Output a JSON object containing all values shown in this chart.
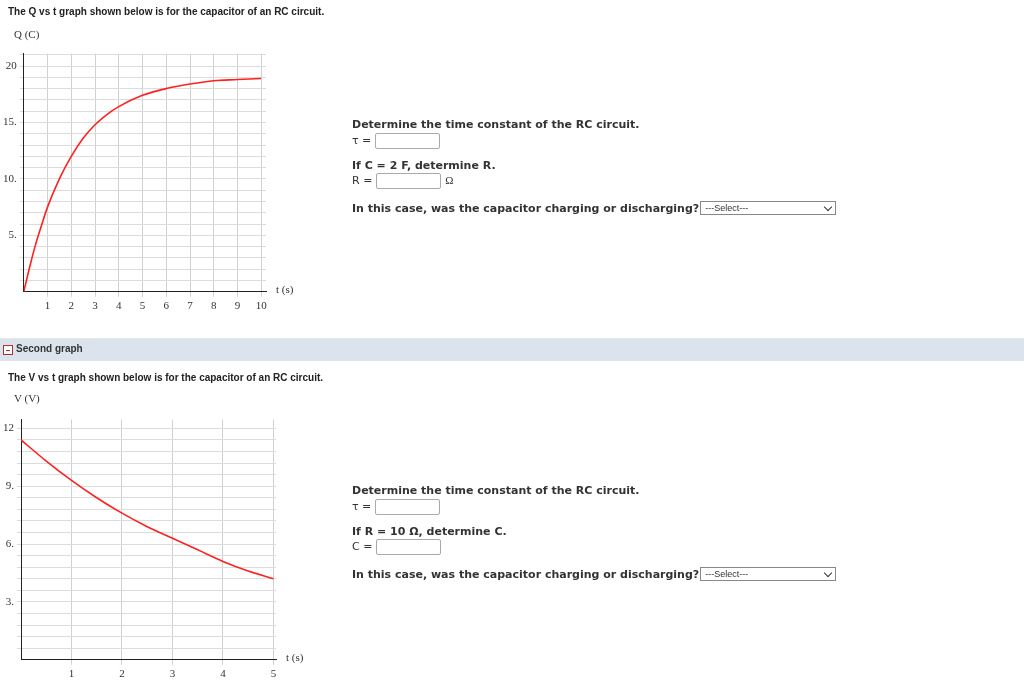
{
  "chart_data": [
    {
      "type": "line",
      "title": "The Q vs t graph shown below is for the capacitor of an RC circuit.",
      "ylabel": "Q (C)",
      "xlabel": "t (s)",
      "color": "#ff2020",
      "x": [
        0,
        0.25,
        0.5,
        0.75,
        1,
        1.5,
        2,
        2.5,
        3,
        3.5,
        4,
        5,
        6,
        7,
        8,
        9,
        10
      ],
      "values": [
        0,
        2.2,
        4.2,
        5.9,
        7.5,
        10.0,
        12.0,
        13.6,
        14.8,
        15.7,
        16.4,
        17.4,
        18.0,
        18.4,
        18.7,
        18.8,
        18.9
      ],
      "xlim": [
        0,
        10.2
      ],
      "ylim": [
        0,
        21.1
      ],
      "xticks": [
        1,
        2,
        3,
        4,
        5,
        6,
        7,
        8,
        9,
        10
      ],
      "yticks": [
        {
          "value": 1,
          "label": null
        },
        {
          "value": 2,
          "label": null
        },
        {
          "value": 3,
          "label": null
        },
        {
          "value": 4,
          "label": null
        },
        {
          "value": 5,
          "label": "5."
        },
        {
          "value": 6,
          "label": null
        },
        {
          "value": 7,
          "label": null
        },
        {
          "value": 8,
          "label": null
        },
        {
          "value": 9,
          "label": null
        },
        {
          "value": 10,
          "label": "10."
        },
        {
          "value": 11,
          "label": null
        },
        {
          "value": 12,
          "label": null
        },
        {
          "value": 13,
          "label": null
        },
        {
          "value": 14,
          "label": null
        },
        {
          "value": 15,
          "label": "15."
        },
        {
          "value": 16,
          "label": null
        },
        {
          "value": 17,
          "label": null
        },
        {
          "value": 18,
          "label": null
        },
        {
          "value": 19,
          "label": null
        },
        {
          "value": 20,
          "label": "20"
        },
        {
          "value": 21,
          "label": null
        }
      ],
      "grid": true
    },
    {
      "type": "other",
      "annotations": [
        "Determine the time constant of the RC circuit.",
        "τ =",
        "If C = 2 F, determine R.",
        "R =",
        "Ω",
        "In this case, was the capacitor charging or discharging?",
        "---Select---"
      ]
    },
    {
      "type": "line",
      "annotations": [
        "Second graph"
      ],
      "title": "The V vs t graph shown below is for the capacitor of an RC circuit.",
      "ylabel": "V (V)",
      "xlabel": "t (s)",
      "color": "#ff2020",
      "x": [
        0,
        0.5,
        1,
        1.5,
        2,
        2.5,
        3,
        3.5,
        4,
        4.5,
        5
      ],
      "values": [
        11.4,
        10.3,
        9.3,
        8.4,
        7.6,
        6.9,
        6.3,
        5.7,
        5.1,
        4.6,
        4.2
      ],
      "xlim": [
        0,
        5.05
      ],
      "ylim": [
        0,
        12.45
      ],
      "xticks": [
        1,
        2,
        3,
        4,
        5
      ],
      "yticks": [
        {
          "value": 0.6,
          "label": null
        },
        {
          "value": 1.2,
          "label": null
        },
        {
          "value": 1.8,
          "label": null
        },
        {
          "value": 2.4,
          "label": null
        },
        {
          "value": 3,
          "label": "3."
        },
        {
          "value": 3.6,
          "label": null
        },
        {
          "value": 4.2,
          "label": null
        },
        {
          "value": 4.8,
          "label": null
        },
        {
          "value": 5.4,
          "label": null
        },
        {
          "value": 6,
          "label": "6."
        },
        {
          "value": 6.6,
          "label": null
        },
        {
          "value": 7.2,
          "label": null
        },
        {
          "value": 7.8,
          "label": null
        },
        {
          "value": 8.4,
          "label": null
        },
        {
          "value": 9,
          "label": "9."
        },
        {
          "value": 9.6,
          "label": null
        },
        {
          "value": 10.2,
          "label": null
        },
        {
          "value": 10.8,
          "label": null
        },
        {
          "value": 11.4,
          "label": null
        },
        {
          "value": 12,
          "label": "12"
        }
      ],
      "grid": true
    },
    {
      "type": "other",
      "annotations": [
        "Determine the time constant of the RC circuit.",
        "τ =",
        "If R = 10 Ω, determine C.",
        "C =",
        "In this case, was the capacitor charging or discharging?",
        "---Select---"
      ]
    }
  ]
}
